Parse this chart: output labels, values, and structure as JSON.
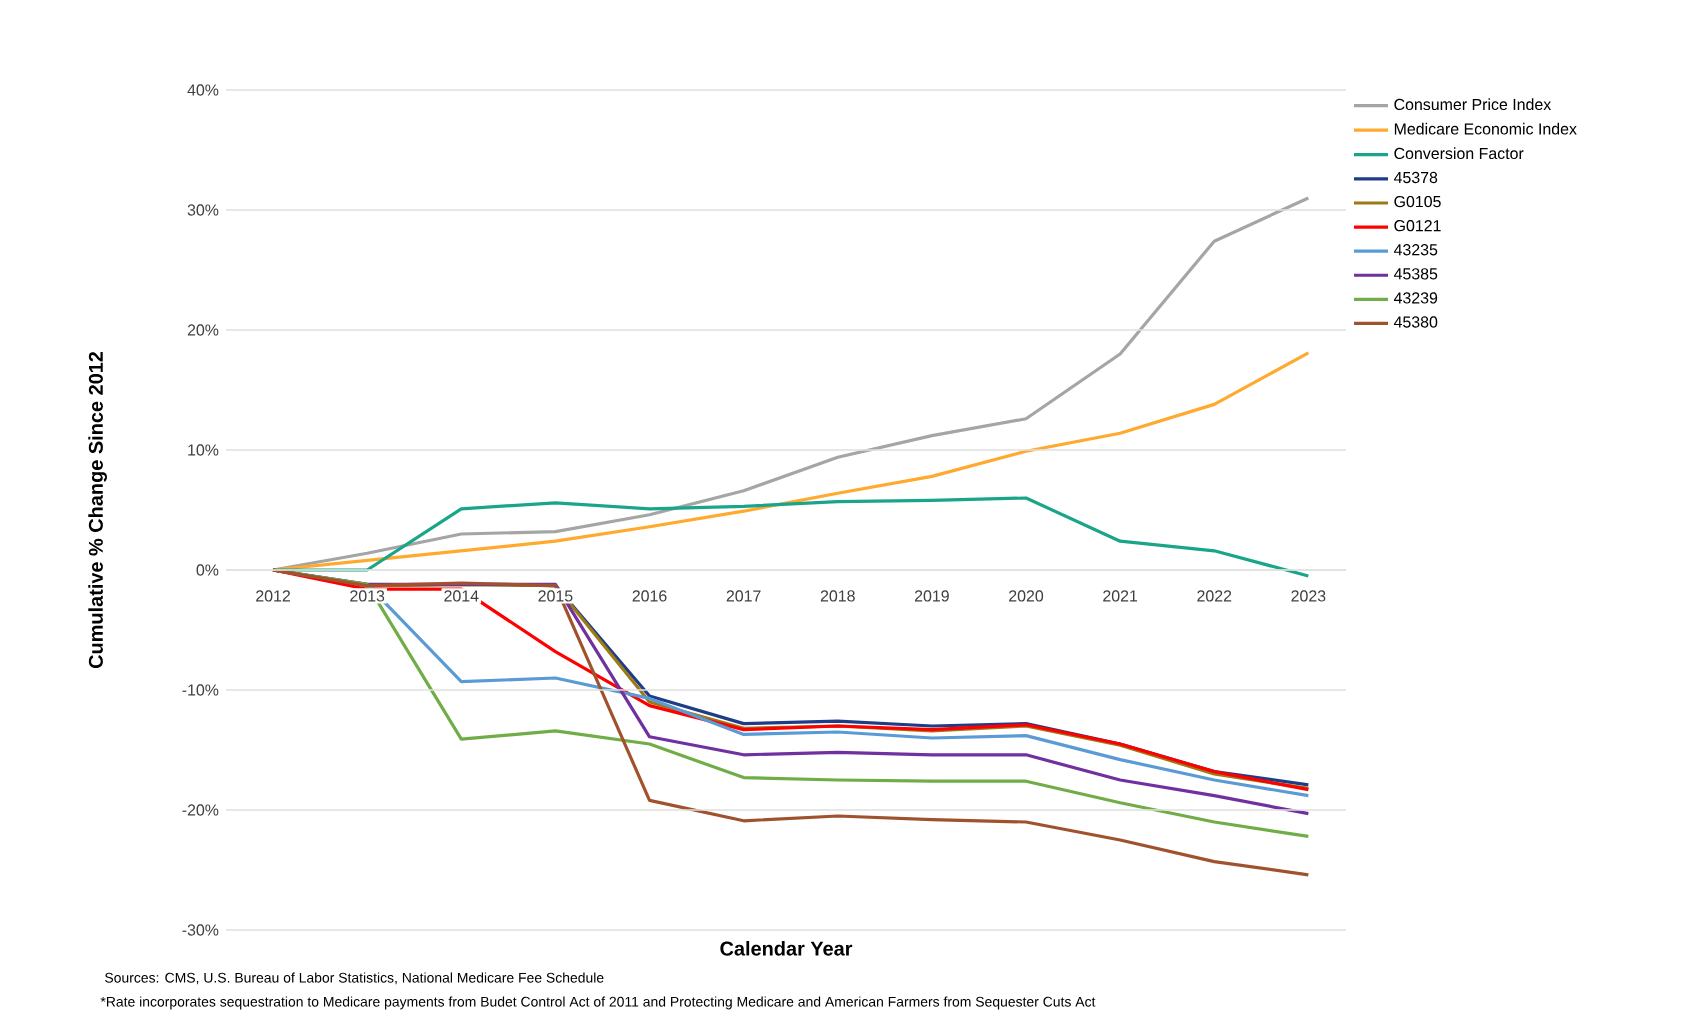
{
  "chart_data": {
    "type": "line",
    "xlabel": "Calendar Year",
    "ylabel": "Cumulative % Change Since 2012",
    "categories": [
      "2012",
      "2013",
      "2014",
      "2015",
      "2016",
      "2017",
      "2018",
      "2019",
      "2020",
      "2021",
      "2022",
      "2023"
    ],
    "series": [
      {
        "name": "Consumer Price Index",
        "color": "#a5a5a5",
        "values": [
          0,
          1.4,
          3.0,
          3.2,
          4.6,
          6.6,
          9.4,
          11.2,
          12.6,
          18.0,
          27.4,
          31.0
        ]
      },
      {
        "name": "Medicare Economic Index",
        "color": "#ffa92e",
        "values": [
          0,
          0.8,
          1.6,
          2.4,
          3.6,
          4.9,
          6.4,
          7.8,
          9.9,
          11.4,
          13.8,
          18.1
        ]
      },
      {
        "name": "Conversion Factor",
        "color": "#1aa58a",
        "values": [
          0,
          0,
          5.1,
          5.6,
          5.1,
          5.3,
          5.7,
          5.8,
          6.0,
          2.4,
          1.6,
          -0.5
        ]
      },
      {
        "name": "45378",
        "color": "#1f3c88",
        "values": [
          0,
          -1.3,
          -1.2,
          -1.3,
          -10.5,
          -12.8,
          -12.6,
          -13.0,
          -12.8,
          -14.5,
          -16.8,
          -17.9
        ]
      },
      {
        "name": "G0105",
        "color": "#9c7a14",
        "values": [
          0,
          -1.3,
          -1.2,
          -1.3,
          -11.0,
          -13.2,
          -13.0,
          -13.4,
          -13.0,
          -14.6,
          -17.0,
          -18.2
        ]
      },
      {
        "name": "G0121",
        "color": "#ff0000",
        "values": [
          0,
          -1.6,
          -1.6,
          -6.8,
          -11.3,
          -13.3,
          -13.0,
          -13.3,
          -12.9,
          -14.5,
          -16.8,
          -18.3
        ]
      },
      {
        "name": "43235",
        "color": "#5b9bd5",
        "values": [
          0,
          -1.2,
          -9.3,
          -9.0,
          -10.7,
          -13.7,
          -13.5,
          -14.0,
          -13.8,
          -15.8,
          -17.5,
          -18.8
        ]
      },
      {
        "name": "45385",
        "color": "#7030a0",
        "values": [
          0,
          -1.2,
          -1.2,
          -1.2,
          -13.9,
          -15.4,
          -15.2,
          -15.4,
          -15.4,
          -17.5,
          -18.8,
          -20.3
        ]
      },
      {
        "name": "43239",
        "color": "#70ad47",
        "values": [
          0,
          -1.2,
          -14.1,
          -13.4,
          -14.5,
          -17.3,
          -17.5,
          -17.6,
          -17.6,
          -19.4,
          -21.0,
          -22.2
        ]
      },
      {
        "name": "45380",
        "color": "#a0522d",
        "values": [
          0,
          -1.3,
          -1.1,
          -1.3,
          -19.2,
          -20.9,
          -20.5,
          -20.8,
          -21.0,
          -22.5,
          -24.3,
          -25.4
        ]
      }
    ],
    "ylim": [
      -30,
      40
    ],
    "yticks": [
      {
        "value": -30,
        "label": "-30%"
      },
      {
        "value": -20,
        "label": "-20%"
      },
      {
        "value": -10,
        "label": "-10%"
      },
      {
        "value": 0,
        "label": "0%"
      },
      {
        "value": 10,
        "label": "10%"
      },
      {
        "value": 20,
        "label": "20%"
      },
      {
        "value": 30,
        "label": "30%"
      },
      {
        "value": 40,
        "label": "40%"
      }
    ],
    "grid": "y",
    "legend": "right",
    "marker": "none",
    "line_style": "solid",
    "annotations": [
      "Sources: CMS, U.S. Bureau of Labor Statistics, National Medicare Fee Schedule",
      "*Rate incorporates sequestration to Medicare payments from Budet Control Act of 2011 and Protecting Medicare and American Farmers from Sequester Cuts Act"
    ]
  }
}
